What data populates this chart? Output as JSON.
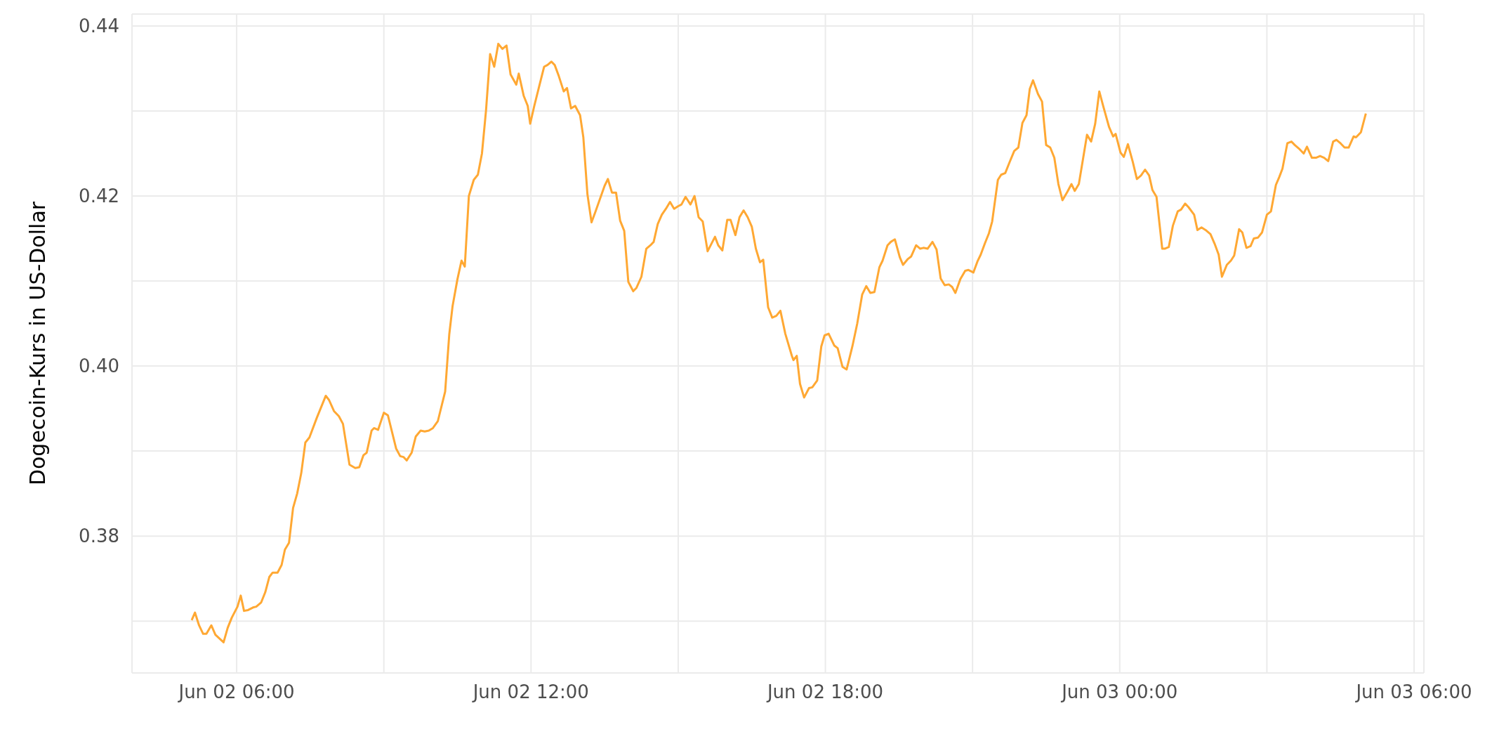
{
  "chart_data": {
    "type": "line",
    "ylabel": "Dogecoin-Kurs in US-Dollar",
    "x": [
      "--06-02T05:05",
      "--06-02T05:09",
      "--06-02T05:14",
      "--06-02T05:19",
      "--06-02T05:23",
      "--06-02T05:29",
      "--06-02T05:34",
      "--06-02T05:44",
      "--06-02T05:49",
      "--06-02T05:54",
      "--06-02T06:01",
      "--06-02T06:05",
      "--06-02T06:09",
      "--06-02T06:14",
      "--06-02T06:20",
      "--06-02T06:24",
      "--06-02T06:30",
      "--06-02T06:35",
      "--06-02T06:40",
      "--06-02T06:44",
      "--06-02T06:50",
      "--06-02T06:55",
      "--06-02T06:59",
      "--06-02T07:04",
      "--06-02T07:09",
      "--06-02T07:14",
      "--06-02T07:19",
      "--06-02T07:24",
      "--06-02T07:29",
      "--06-02T07:38",
      "--06-02T07:49",
      "--06-02T07:53",
      "--06-02T07:59",
      "--06-02T08:05",
      "--06-02T08:10",
      "--06-02T08:18",
      "--06-02T08:25",
      "--06-02T08:30",
      "--06-02T08:35",
      "--06-02T08:39",
      "--06-02T08:45",
      "--06-02T08:48",
      "--06-02T08:53",
      "--06-02T09:00",
      "--06-02T09:05",
      "--06-02T09:15",
      "--06-02T09:20",
      "--06-02T09:24",
      "--06-02T09:28",
      "--06-02T09:34",
      "--06-02T09:39",
      "--06-02T09:45",
      "--06-02T09:50",
      "--06-02T09:55",
      "--06-02T10:00",
      "--06-02T10:06",
      "--06-02T10:15",
      "--06-02T10:20",
      "--06-02T10:24",
      "--06-02T10:30",
      "--06-02T10:35",
      "--06-02T10:39",
      "--06-02T10:44",
      "--06-02T10:50",
      "--06-02T10:55",
      "--06-02T11:00",
      "--06-02T11:05",
      "--06-02T11:10",
      "--06-02T11:15",
      "--06-02T11:20",
      "--06-02T11:25",
      "--06-02T11:30",
      "--06-02T11:35",
      "--06-02T11:42",
      "--06-02T11:45",
      "--06-02T11:51",
      "--06-02T11:56",
      "--06-02T11:59",
      "--06-02T12:04",
      "--06-02T12:10",
      "--06-02T12:16",
      "--06-02T12:20",
      "--06-02T12:25",
      "--06-02T12:29",
      "--06-02T12:34",
      "--06-02T12:40",
      "--06-02T12:44",
      "--06-02T12:49",
      "--06-02T12:54",
      "--06-02T13:00",
      "--06-02T13:04",
      "--06-02T13:09",
      "--06-02T13:14",
      "--06-02T13:19",
      "--06-02T13:30",
      "--06-02T13:34",
      "--06-02T13:39",
      "--06-02T13:44",
      "--06-02T13:49",
      "--06-02T13:54",
      "--06-02T13:59",
      "--06-02T14:05",
      "--06-02T14:09",
      "--06-02T14:15",
      "--06-02T14:21",
      "--06-02T14:26",
      "--06-02T14:30",
      "--06-02T14:35",
      "--06-02T14:40",
      "--06-02T14:45",
      "--06-02T14:50",
      "--06-02T14:55",
      "--06-02T15:00",
      "--06-02T15:04",
      "--06-02T15:09",
      "--06-02T15:15",
      "--06-02T15:20",
      "--06-02T15:25",
      "--06-02T15:30",
      "--06-02T15:36",
      "--06-02T15:45",
      "--06-02T15:49",
      "--06-02T15:54",
      "--06-02T16:00",
      "--06-02T16:04",
      "--06-02T16:10",
      "--06-02T16:15",
      "--06-02T16:20",
      "--06-02T16:25",
      "--06-02T16:30",
      "--06-02T16:35",
      "--06-02T16:40",
      "--06-02T16:44",
      "--06-02T16:50",
      "--06-02T16:55",
      "--06-02T17:00",
      "--06-02T17:05",
      "--06-02T17:11",
      "--06-02T17:19",
      "--06-02T17:21",
      "--06-02T17:25",
      "--06-02T17:29",
      "--06-02T17:34",
      "--06-02T17:40",
      "--06-02T17:44",
      "--06-02T17:50",
      "--06-02T17:55",
      "--06-02T17:59",
      "--06-02T18:04",
      "--06-02T18:11",
      "--06-02T18:15",
      "--06-02T18:21",
      "--06-02T18:26",
      "--06-02T18:33",
      "--06-02T18:39",
      "--06-02T18:45",
      "--06-02T18:50",
      "--06-02T18:55",
      "--06-02T19:00",
      "--06-02T19:06",
      "--06-02T19:10",
      "--06-02T19:16",
      "--06-02T19:20",
      "--06-02T19:25",
      "--06-02T19:31",
      "--06-02T19:35",
      "--06-02T19:41",
      "--06-02T19:45",
      "--06-02T19:51",
      "--06-02T19:56",
      "--06-02T20:00",
      "--06-02T20:05",
      "--06-02T20:11",
      "--06-02T20:16",
      "--06-02T20:21",
      "--06-02T20:26",
      "--06-02T20:31",
      "--06-02T20:35",
      "--06-02T20:39",
      "--06-02T20:45",
      "--06-02T20:51",
      "--06-02T20:55",
      "--06-02T21:01",
      "--06-02T21:06",
      "--06-02T21:10",
      "--06-02T21:15",
      "--06-02T21:20",
      "--06-02T21:24",
      "--06-02T21:31",
      "--06-02T21:35",
      "--06-02T21:40",
      "--06-02T21:45",
      "--06-02T21:51",
      "--06-02T21:56",
      "--06-02T22:01",
      "--06-02T22:06",
      "--06-02T22:10",
      "--06-02T22:14",
      "--06-02T22:20",
      "--06-02T22:25",
      "--06-02T22:30",
      "--06-02T22:35",
      "--06-02T22:40",
      "--06-02T22:45",
      "--06-02T22:50",
      "--06-02T22:56",
      "--06-02T23:01",
      "--06-02T23:05",
      "--06-02T23:10",
      "--06-02T23:15",
      "--06-02T23:20",
      "--06-02T23:25",
      "--06-02T23:30",
      "--06-02T23:35",
      "--06-02T23:40",
      "--06-02T23:47",
      "--06-02T23:52",
      "--06-02T23:55",
      "--06-03T00:01",
      "--06-03T00:05",
      "--06-03T00:10",
      "--06-03T00:16",
      "--06-03T00:21",
      "--06-03T00:26",
      "--06-03T00:31",
      "--06-03T00:36",
      "--06-03T00:40",
      "--06-03T00:45",
      "--06-03T00:52",
      "--06-03T00:55",
      "--06-03T01:00",
      "--06-03T01:05",
      "--06-03T01:11",
      "--06-03T01:15",
      "--06-03T01:20",
      "--06-03T01:24",
      "--06-03T01:31",
      "--06-03T01:35",
      "--06-03T01:40",
      "--06-03T01:45",
      "--06-03T01:51",
      "--06-03T01:56",
      "--06-03T02:01",
      "--06-03T02:05",
      "--06-03T02:11",
      "--06-03T02:16",
      "--06-03T02:20",
      "--06-03T02:26",
      "--06-03T02:30",
      "--06-03T02:35",
      "--06-03T02:40",
      "--06-03T02:44",
      "--06-03T02:49",
      "--06-03T02:54",
      "--06-03T03:00",
      "--06-03T03:05",
      "--06-03T03:11",
      "--06-03T03:15",
      "--06-03T03:19",
      "--06-03T03:25",
      "--06-03T03:30",
      "--06-03T03:34",
      "--06-03T03:40",
      "--06-03T03:45",
      "--06-03T03:49",
      "--06-03T03:55",
      "--06-03T04:00",
      "--06-03T04:05",
      "--06-03T04:10",
      "--06-03T04:15",
      "--06-03T04:21",
      "--06-03T04:25",
      "--06-03T04:30",
      "--06-03T04:35",
      "--06-03T04:40",
      "--06-03T04:46",
      "--06-03T04:49",
      "--06-03T04:55",
      "--06-03T05:01"
    ],
    "series": [
      {
        "color": "#ffa833",
        "values": [
          0.3701,
          0.371,
          0.3695,
          0.3685,
          0.3685,
          0.3695,
          0.3684,
          0.3675,
          0.3692,
          0.3704,
          0.3717,
          0.373,
          0.3712,
          0.3713,
          0.3716,
          0.3717,
          0.3722,
          0.3734,
          0.3752,
          0.3757,
          0.3757,
          0.3766,
          0.3784,
          0.3792,
          0.3833,
          0.385,
          0.3874,
          0.391,
          0.3916,
          0.3939,
          0.3965,
          0.396,
          0.3947,
          0.3941,
          0.3932,
          0.3884,
          0.388,
          0.3881,
          0.3895,
          0.3898,
          0.3924,
          0.3927,
          0.3925,
          0.3945,
          0.3942,
          0.3903,
          0.3894,
          0.3893,
          0.3889,
          0.3898,
          0.3917,
          0.3924,
          0.3923,
          0.3924,
          0.3927,
          0.3935,
          0.397,
          0.4037,
          0.407,
          0.4102,
          0.4124,
          0.4117,
          0.42,
          0.4219,
          0.4225,
          0.425,
          0.4301,
          0.4367,
          0.4352,
          0.4379,
          0.4373,
          0.4377,
          0.4343,
          0.4331,
          0.4344,
          0.4318,
          0.4306,
          0.4285,
          0.4306,
          0.4329,
          0.4352,
          0.4354,
          0.4358,
          0.4354,
          0.4341,
          0.4323,
          0.4327,
          0.4303,
          0.4306,
          0.4295,
          0.4269,
          0.4202,
          0.4169,
          0.4182,
          0.4212,
          0.422,
          0.4204,
          0.4204,
          0.4171,
          0.4159,
          0.4099,
          0.4088,
          0.4092,
          0.4105,
          0.4138,
          0.4142,
          0.4146,
          0.4167,
          0.4178,
          0.4185,
          0.4193,
          0.4185,
          0.4188,
          0.419,
          0.4199,
          0.419,
          0.42,
          0.4175,
          0.417,
          0.4135,
          0.4152,
          0.4142,
          0.4136,
          0.4172,
          0.4172,
          0.4154,
          0.4175,
          0.4183,
          0.4175,
          0.4164,
          0.4138,
          0.4122,
          0.4125,
          0.4069,
          0.4057,
          0.4059,
          0.4065,
          0.4038,
          0.4012,
          0.4007,
          0.4012,
          0.3979,
          0.3963,
          0.3974,
          0.3975,
          0.3983,
          0.4023,
          0.4036,
          0.4038,
          0.4024,
          0.4021,
          0.3999,
          0.3996,
          0.4023,
          0.405,
          0.4084,
          0.4094,
          0.4086,
          0.4087,
          0.4116,
          0.4124,
          0.4142,
          0.4146,
          0.4149,
          0.4128,
          0.4119,
          0.4126,
          0.4129,
          0.4142,
          0.4138,
          0.4139,
          0.4138,
          0.4146,
          0.4137,
          0.4103,
          0.4095,
          0.4096,
          0.4093,
          0.4086,
          0.4102,
          0.4112,
          0.4113,
          0.411,
          0.4123,
          0.4131,
          0.4144,
          0.4156,
          0.417,
          0.4219,
          0.4225,
          0.4227,
          0.4239,
          0.4253,
          0.4257,
          0.4286,
          0.4295,
          0.4326,
          0.4336,
          0.432,
          0.4311,
          0.426,
          0.4257,
          0.4245,
          0.4214,
          0.4195,
          0.4205,
          0.4214,
          0.4206,
          0.4214,
          0.4243,
          0.4272,
          0.4264,
          0.4285,
          0.4323,
          0.4305,
          0.4281,
          0.427,
          0.4273,
          0.4251,
          0.4246,
          0.4261,
          0.424,
          0.422,
          0.4224,
          0.4231,
          0.4224,
          0.4207,
          0.4199,
          0.4138,
          0.4138,
          0.414,
          0.4165,
          0.4182,
          0.4184,
          0.4191,
          0.4187,
          0.4178,
          0.416,
          0.4163,
          0.416,
          0.4155,
          0.4144,
          0.4131,
          0.4105,
          0.4119,
          0.4124,
          0.413,
          0.4161,
          0.4157,
          0.4139,
          0.4141,
          0.415,
          0.4151,
          0.4157,
          0.4178,
          0.4182,
          0.4213,
          0.4222,
          0.4232,
          0.4262,
          0.4264,
          0.426,
          0.4255,
          0.425,
          0.4258,
          0.4245,
          0.4245,
          0.4247,
          0.4245,
          0.4241,
          0.4264,
          0.4266,
          0.4262,
          0.4257,
          0.4257,
          0.427,
          0.4269,
          0.4275,
          0.4297
        ]
      }
    ],
    "xlim": [
      "--06-02T03:52",
      "--06-03T06:12"
    ],
    "xticks": [
      {
        "value": "--06-02T06:00",
        "label": "Jun 02 06:00"
      },
      {
        "value": "--06-02T09:00",
        "label": null
      },
      {
        "value": "--06-02T12:00",
        "label": "Jun 02 12:00"
      },
      {
        "value": "--06-02T15:00",
        "label": null
      },
      {
        "value": "--06-02T18:00",
        "label": "Jun 02 18:00"
      },
      {
        "value": "--06-02T21:00",
        "label": null
      },
      {
        "value": "--06-03T00:00",
        "label": "Jun 03 00:00"
      },
      {
        "value": "--06-03T03:00",
        "label": null
      },
      {
        "value": "--06-03T06:00",
        "label": "Jun 03 06:00"
      }
    ],
    "ylim": [
      0.3639,
      0.4414
    ],
    "yticks": [
      {
        "value": 0.37,
        "label": null
      },
      0.38,
      {
        "value": 0.39,
        "label": null
      },
      {
        "value": 0.4,
        "label": "0.40"
      },
      {
        "value": 0.41,
        "label": null
      },
      0.42,
      {
        "value": 0.43,
        "label": null
      },
      0.44
    ],
    "grid": true,
    "legend": false,
    "marker": "none",
    "line_style": "solid"
  }
}
